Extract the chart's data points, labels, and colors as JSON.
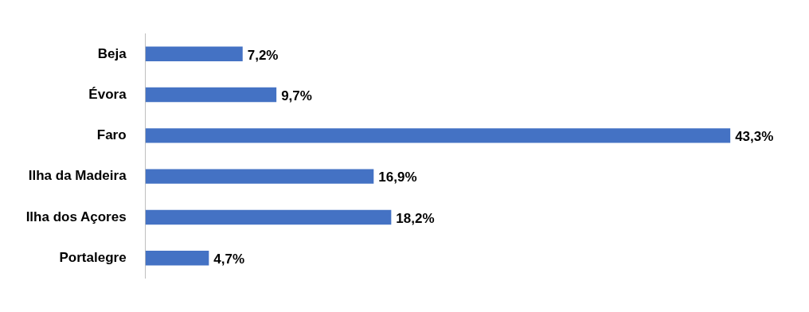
{
  "chart_data": {
    "type": "bar",
    "orientation": "horizontal",
    "categories": [
      "Beja",
      "Évora",
      "Faro",
      "Ilha da Madeira",
      "Ilha dos Açores",
      "Portalegre"
    ],
    "values": [
      7.2,
      9.7,
      43.3,
      16.9,
      18.2,
      4.7
    ],
    "value_labels": [
      "7,2%",
      "9,7%",
      "43,3%",
      "16,9%",
      "18,2%",
      "4,7%"
    ],
    "color": "#4472c4"
  }
}
